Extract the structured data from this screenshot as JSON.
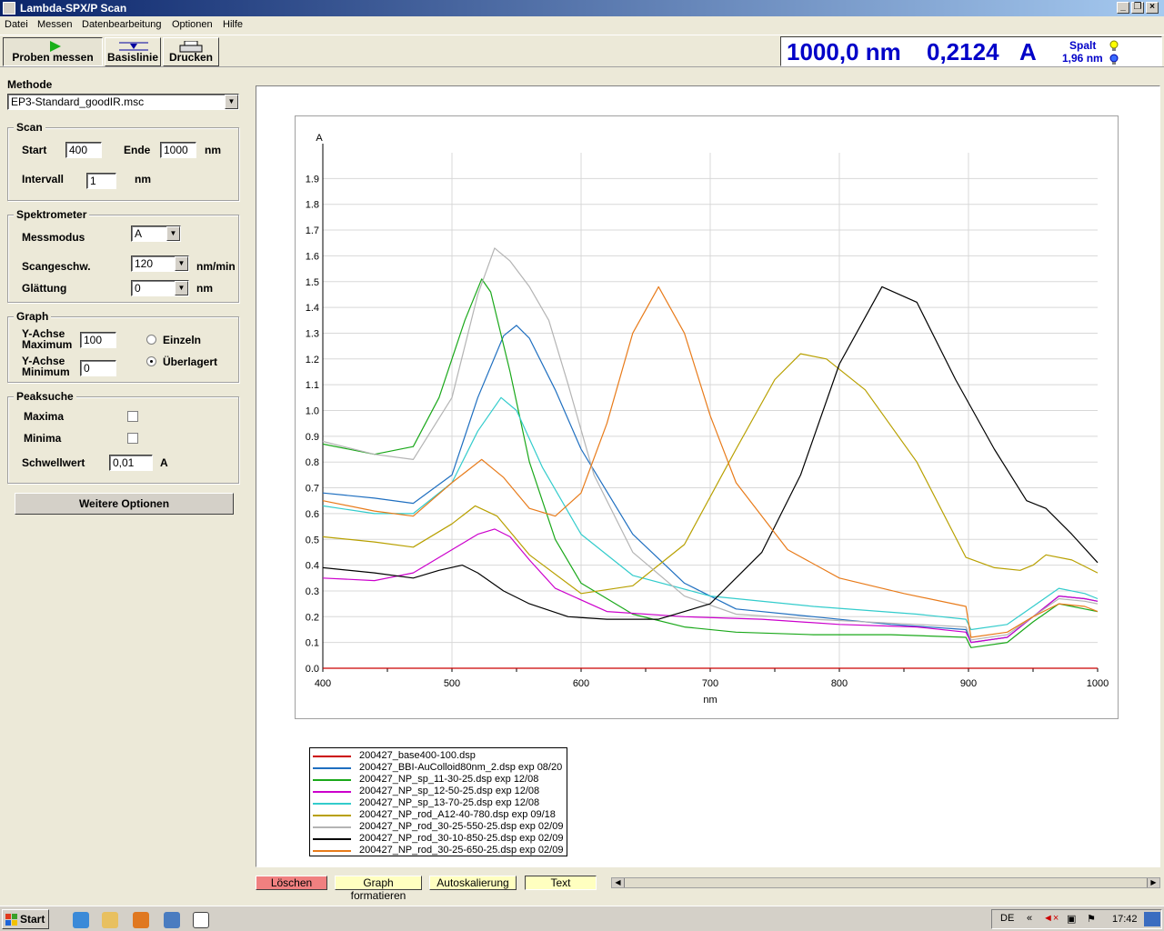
{
  "window": {
    "title": "Lambda-SPX/P Scan"
  },
  "menu": [
    "Datei",
    "Messen",
    "Datenbearbeitung",
    "Optionen",
    "Hilfe"
  ],
  "toolbar": {
    "measure": "Proben messen",
    "baseline": "Basislinie",
    "print": "Drucken"
  },
  "readout": {
    "wavelength": "1000,0 nm",
    "absorbance": "0,2124",
    "unit": "A",
    "slit_label": "Spalt",
    "slit_value": "1,96 nm"
  },
  "method": {
    "label": "Methode",
    "value": "EP3-Standard_goodIR.msc"
  },
  "scan": {
    "title": "Scan",
    "start_label": "Start",
    "start": "400",
    "end_label": "Ende",
    "end": "1000",
    "unit": "nm",
    "interval_label": "Intervall",
    "interval": "1",
    "interval_unit": "nm"
  },
  "spectrometer": {
    "title": "Spektrometer",
    "mode_label": "Messmodus",
    "mode": "A",
    "speed_label": "Scangeschw.",
    "speed": "120",
    "speed_unit": "nm/min",
    "smooth_label": "Glättung",
    "smooth": "0",
    "smooth_unit": "nm"
  },
  "graph": {
    "title": "Graph",
    "ymax_label1": "Y-Achse",
    "ymax_label2": "Maximum",
    "ymax": "100",
    "ymin_label1": "Y-Achse",
    "ymin_label2": "Minimum",
    "ymin": "0",
    "single": "Einzeln",
    "overlay": "Überlagert"
  },
  "peaks": {
    "title": "Peaksuche",
    "maxima": "Maxima",
    "minima": "Minima",
    "threshold_label": "Schwellwert",
    "threshold": "0,01",
    "threshold_unit": "A"
  },
  "more_options": "Weitere Optionen",
  "bottom_buttons": {
    "delete": "Löschen",
    "format": "Graph formatieren",
    "autoscale": "Autoskalierung",
    "text": "Text"
  },
  "taskbar": {
    "start": "Start",
    "lang": "DE",
    "time": "17:42"
  },
  "colors": {
    "readout": "#0000c8",
    "delete_bg": "#f08080",
    "yellow_btn": "#ffffc0"
  },
  "chart_data": {
    "type": "line",
    "ylabel": "A",
    "xlabel": "nm",
    "xlim": [
      400,
      1000
    ],
    "ylim": [
      0,
      2.0
    ],
    "x_ticks": [
      "400",
      "500",
      "600",
      "700",
      "800",
      "900",
      "1000"
    ],
    "y_ticks": [
      "0.0",
      "0.1",
      "0.2",
      "0.3",
      "0.4",
      "0.5",
      "0.6",
      "0.7",
      "0.8",
      "0.9",
      "1.0",
      "1.1",
      "1.2",
      "1.3",
      "1.4",
      "1.5",
      "1.6",
      "1.7",
      "1.8",
      "1.9"
    ],
    "series": [
      {
        "name": "200427_base400-100.dsp",
        "color": "#cc0000",
        "x": [
          400,
          1000
        ],
        "y": [
          0,
          0
        ]
      },
      {
        "name": "200427_BBI-AuColloid80nm_2.dsp   exp 08/20",
        "color": "#1f6fc0",
        "x": [
          400,
          440,
          470,
          500,
          520,
          540,
          550,
          560,
          580,
          600,
          640,
          680,
          720,
          780,
          840,
          898,
          902,
          930,
          950,
          970,
          990,
          1000
        ],
        "y": [
          0.68,
          0.66,
          0.64,
          0.75,
          1.05,
          1.29,
          1.33,
          1.28,
          1.08,
          0.85,
          0.52,
          0.33,
          0.23,
          0.2,
          0.17,
          0.15,
          0.1,
          0.12,
          0.2,
          0.28,
          0.27,
          0.26
        ]
      },
      {
        "name": "200427_NP_sp_11-30-25.dsp   exp 12/08",
        "color": "#1aa81a",
        "x": [
          400,
          440,
          470,
          490,
          510,
          523,
          530,
          545,
          560,
          580,
          600,
          640,
          680,
          720,
          780,
          840,
          898,
          902,
          930,
          950,
          970,
          990,
          1000
        ],
        "y": [
          0.87,
          0.83,
          0.86,
          1.05,
          1.35,
          1.51,
          1.46,
          1.15,
          0.8,
          0.5,
          0.33,
          0.21,
          0.16,
          0.14,
          0.13,
          0.13,
          0.12,
          0.08,
          0.1,
          0.18,
          0.25,
          0.23,
          0.22
        ]
      },
      {
        "name": "200427_NP_sp_12-50-25.dsp   exp 12/08",
        "color": "#cc00cc",
        "x": [
          400,
          440,
          470,
          500,
          520,
          533,
          545,
          560,
          580,
          620,
          680,
          740,
          800,
          860,
          898,
          902,
          930,
          950,
          970,
          990,
          1000
        ],
        "y": [
          0.35,
          0.34,
          0.37,
          0.46,
          0.52,
          0.54,
          0.51,
          0.42,
          0.31,
          0.22,
          0.2,
          0.19,
          0.17,
          0.16,
          0.14,
          0.1,
          0.12,
          0.2,
          0.28,
          0.27,
          0.26
        ]
      },
      {
        "name": "200427_NP_sp_13-70-25.dsp   exp 12/08",
        "color": "#33cccc",
        "x": [
          400,
          440,
          470,
          500,
          520,
          538,
          550,
          570,
          600,
          640,
          700,
          780,
          860,
          898,
          902,
          930,
          950,
          970,
          990,
          1000
        ],
        "y": [
          0.63,
          0.6,
          0.6,
          0.72,
          0.92,
          1.05,
          1.0,
          0.78,
          0.52,
          0.36,
          0.28,
          0.24,
          0.21,
          0.19,
          0.15,
          0.17,
          0.24,
          0.31,
          0.29,
          0.27
        ]
      },
      {
        "name": "200427_NP_rod_A12-40-780.dsp   exp 09/18",
        "color": "#b8a000",
        "x": [
          400,
          440,
          470,
          500,
          518,
          535,
          560,
          600,
          640,
          680,
          720,
          750,
          770,
          790,
          820,
          860,
          898,
          920,
          940,
          950,
          960,
          980,
          1000
        ],
        "y": [
          0.51,
          0.49,
          0.47,
          0.56,
          0.63,
          0.59,
          0.44,
          0.29,
          0.32,
          0.48,
          0.85,
          1.12,
          1.22,
          1.2,
          1.08,
          0.8,
          0.43,
          0.39,
          0.38,
          0.4,
          0.44,
          0.42,
          0.37
        ]
      },
      {
        "name": "200427_NP_rod_30-25-550-25.dsp   exp 02/09",
        "color": "#b4b4b4",
        "x": [
          400,
          440,
          470,
          500,
          520,
          533,
          545,
          560,
          575,
          590,
          610,
          640,
          680,
          720,
          780,
          860,
          898,
          902,
          930,
          950,
          970,
          990,
          1000
        ],
        "y": [
          0.88,
          0.83,
          0.81,
          1.05,
          1.45,
          1.63,
          1.58,
          1.48,
          1.35,
          1.1,
          0.75,
          0.45,
          0.28,
          0.21,
          0.19,
          0.17,
          0.16,
          0.11,
          0.13,
          0.2,
          0.27,
          0.26,
          0.25
        ]
      },
      {
        "name": "200427_NP_rod_30-10-850-25.dsp   exp 02/09",
        "color": "#000000",
        "x": [
          400,
          440,
          470,
          490,
          508,
          520,
          540,
          560,
          590,
          620,
          660,
          700,
          740,
          770,
          800,
          833,
          860,
          890,
          920,
          945,
          960,
          980,
          1000
        ],
        "y": [
          0.39,
          0.37,
          0.35,
          0.38,
          0.4,
          0.37,
          0.3,
          0.25,
          0.2,
          0.19,
          0.19,
          0.25,
          0.45,
          0.75,
          1.18,
          1.48,
          1.42,
          1.12,
          0.85,
          0.65,
          0.62,
          0.52,
          0.41
        ]
      },
      {
        "name": "200427_NP_rod_30-25-650-25.dsp   exp 02/09",
        "color": "#e87b1a",
        "x": [
          400,
          440,
          470,
          500,
          523,
          540,
          560,
          580,
          600,
          620,
          640,
          660,
          680,
          700,
          720,
          760,
          800,
          850,
          898,
          902,
          930,
          950,
          970,
          990,
          1000
        ],
        "y": [
          0.65,
          0.61,
          0.59,
          0.72,
          0.81,
          0.74,
          0.62,
          0.59,
          0.68,
          0.95,
          1.3,
          1.48,
          1.3,
          0.98,
          0.72,
          0.46,
          0.35,
          0.29,
          0.24,
          0.12,
          0.14,
          0.2,
          0.25,
          0.24,
          0.22
        ]
      }
    ]
  }
}
